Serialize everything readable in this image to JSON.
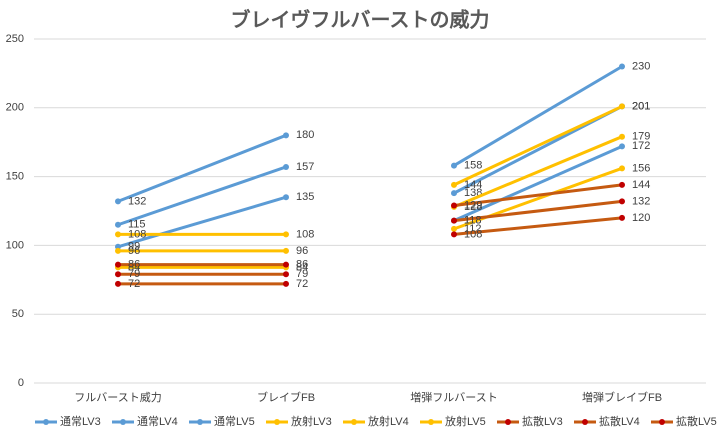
{
  "chart_data": {
    "type": "line",
    "title": "ブレイヴフルバーストの威力",
    "categories": [
      "フルバースト威力",
      "ブレイブFB",
      "増弾フルバースト",
      "増弾ブレイブFB"
    ],
    "series": [
      {
        "name": "通常LV3",
        "color": "#5b9bd5",
        "marker_color": "#5b9bd5",
        "values": [
          99,
          135,
          118,
          172
        ]
      },
      {
        "name": "通常LV4",
        "color": "#5b9bd5",
        "marker_color": "#5b9bd5",
        "values": [
          115,
          157,
          138,
          201
        ]
      },
      {
        "name": "通常LV5",
        "color": "#5b9bd5",
        "marker_color": "#5b9bd5",
        "values": [
          132,
          180,
          158,
          230
        ]
      },
      {
        "name": "放射LV3",
        "color": "#ffc000",
        "marker_color": "#ffc000",
        "values": [
          84,
          84,
          112,
          156
        ]
      },
      {
        "name": "放射LV4",
        "color": "#ffc000",
        "marker_color": "#ffc000",
        "values": [
          96,
          96,
          128,
          179
        ]
      },
      {
        "name": "放射LV5",
        "color": "#ffc000",
        "marker_color": "#ffc000",
        "values": [
          108,
          108,
          144,
          201
        ]
      },
      {
        "name": "拡散LV3",
        "color": "#c55a11",
        "marker_color": "#c00000",
        "values": [
          72,
          72,
          108,
          120
        ]
      },
      {
        "name": "拡散LV4",
        "color": "#c55a11",
        "marker_color": "#c00000",
        "values": [
          79,
          79,
          118,
          132
        ]
      },
      {
        "name": "拡散LV5",
        "color": "#c55a11",
        "marker_color": "#c00000",
        "values": [
          86,
          86,
          129,
          144
        ]
      }
    ],
    "ylim": [
      0,
      250
    ],
    "yticks": [
      0,
      50,
      100,
      150,
      200,
      250
    ],
    "grid": true,
    "legend": "bottom"
  }
}
